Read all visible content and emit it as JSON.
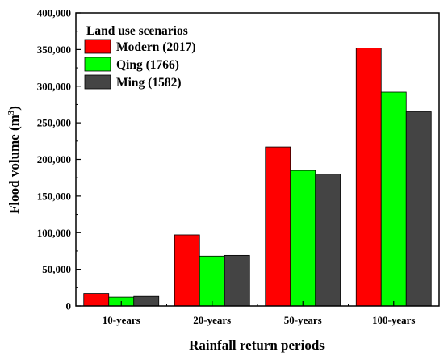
{
  "chart_data": {
    "type": "bar",
    "categories": [
      "10-years",
      "20-years",
      "50-years",
      "100-years"
    ],
    "series": [
      {
        "name": "Modern (2017)",
        "color": "#ff0000",
        "values": [
          17000,
          97000,
          217000,
          352000
        ]
      },
      {
        "name": "Qing (1766)",
        "color": "#00ff00",
        "values": [
          12000,
          68000,
          185000,
          292000
        ]
      },
      {
        "name": "Ming (1582)",
        "color": "#444444",
        "values": [
          13000,
          69000,
          180000,
          265000
        ]
      }
    ],
    "title": "",
    "xlabel": "Rainfall return periods",
    "ylabel_main": "Flood volume (m",
    "ylabel_sup": "3",
    "ylabel_close": ")",
    "ylim": [
      0,
      400000
    ],
    "yticks": [
      "0",
      "50,000",
      "100,000",
      "150,000",
      "200,000",
      "250,000",
      "300,000",
      "350,000",
      "400,000"
    ],
    "legend_title": "Land use scenarios",
    "legend_position": "top-left",
    "grid": false
  }
}
